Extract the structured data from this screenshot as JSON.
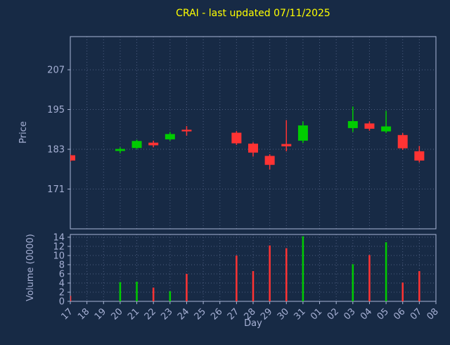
{
  "colors": {
    "background": "#172a45",
    "grid": "#4d5d80",
    "text": "#a6b0d4",
    "spine": "#aab6d6",
    "title": "#ffff00",
    "up": "#00cc00",
    "down": "#ff3333"
  },
  "chart_data": {
    "type": "candlestick",
    "title": "CRAI - last updated 07/11/2025",
    "xlabel": "Day",
    "x_categories": [
      "17",
      "18",
      "19",
      "20",
      "21",
      "22",
      "23",
      "24",
      "25",
      "26",
      "27",
      "28",
      "29",
      "30",
      "31",
      "01",
      "02",
      "03",
      "04",
      "05",
      "06",
      "07",
      "08"
    ],
    "price": {
      "ylabel": "Price",
      "yticks": [
        207,
        195,
        183,
        171
      ],
      "ylim": [
        159,
        217
      ],
      "grid": true
    },
    "volume": {
      "ylabel": "Volume (0000)",
      "yticks": [
        14,
        12,
        10,
        8,
        6,
        4,
        2,
        0
      ],
      "ylim": [
        0,
        14.6
      ],
      "grid": true
    },
    "candles": [
      {
        "day": "17",
        "open": 181.2,
        "high": 181.5,
        "low": 179.2,
        "close": 179.6,
        "volume": 1.2
      },
      {
        "day": "20",
        "open": 182.5,
        "high": 183.6,
        "low": 181.8,
        "close": 183.1,
        "volume": 4.2
      },
      {
        "day": "21",
        "open": 183.4,
        "high": 185.9,
        "low": 183.1,
        "close": 185.5,
        "volume": 4.3
      },
      {
        "day": "22",
        "open": 185.0,
        "high": 185.6,
        "low": 183.6,
        "close": 184.2,
        "volume": 3.0
      },
      {
        "day": "23",
        "open": 186.0,
        "high": 188.2,
        "low": 185.6,
        "close": 187.6,
        "volume": 2.2
      },
      {
        "day": "24",
        "open": 188.9,
        "high": 190.0,
        "low": 187.1,
        "close": 188.4,
        "volume": 6.0
      },
      {
        "day": "27",
        "open": 188.0,
        "high": 188.5,
        "low": 184.3,
        "close": 184.8,
        "volume": 10.0
      },
      {
        "day": "28",
        "open": 184.7,
        "high": 185.1,
        "low": 180.8,
        "close": 182.0,
        "volume": 6.6
      },
      {
        "day": "29",
        "open": 181.0,
        "high": 181.5,
        "low": 176.9,
        "close": 178.3,
        "volume": 12.2
      },
      {
        "day": "30",
        "open": 184.6,
        "high": 191.8,
        "low": 182.4,
        "close": 183.9,
        "volume": 11.6
      },
      {
        "day": "31",
        "open": 185.6,
        "high": 191.4,
        "low": 184.9,
        "close": 190.2,
        "volume": 14.2
      },
      {
        "day": "03",
        "open": 189.4,
        "high": 195.9,
        "low": 188.2,
        "close": 191.5,
        "volume": 8.1
      },
      {
        "day": "04",
        "open": 190.8,
        "high": 191.4,
        "low": 188.6,
        "close": 189.2,
        "volume": 10.1
      },
      {
        "day": "05",
        "open": 188.4,
        "high": 194.6,
        "low": 187.9,
        "close": 189.9,
        "volume": 12.9
      },
      {
        "day": "06",
        "open": 187.3,
        "high": 187.9,
        "low": 182.8,
        "close": 183.3,
        "volume": 4.1
      },
      {
        "day": "07",
        "open": 182.4,
        "high": 184.0,
        "low": 179.0,
        "close": 179.6,
        "volume": 6.6
      }
    ]
  }
}
